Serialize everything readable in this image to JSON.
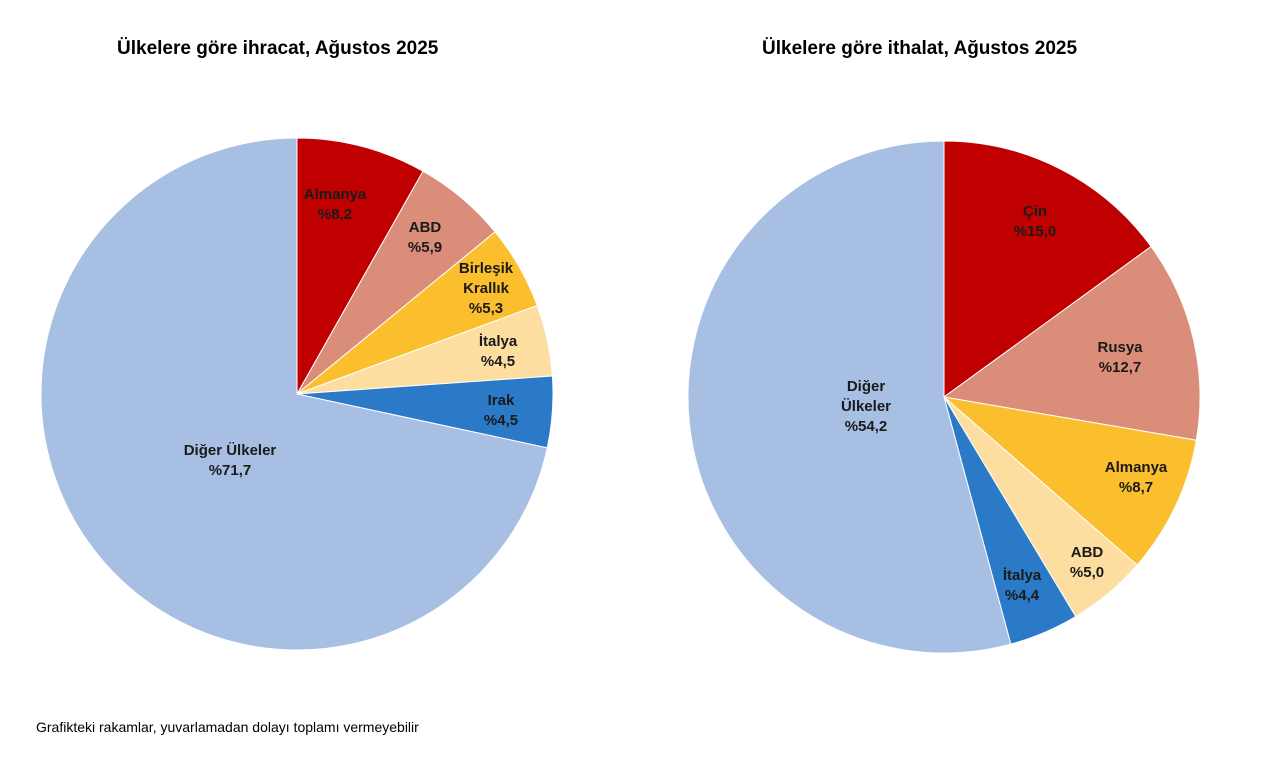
{
  "chart_data": [
    {
      "type": "pie",
      "title": "Ülkelere göre ihracat, Ağustos 2025",
      "slices": [
        {
          "label": [
            "Almanya"
          ],
          "value_label": "%8,2",
          "value": 8.2,
          "color": "#C00000"
        },
        {
          "label": [
            "ABD"
          ],
          "value_label": "%5,9",
          "value": 5.9,
          "color": "#DA8E7A"
        },
        {
          "label": [
            "Birleşik",
            "Krallık"
          ],
          "value_label": "%5,3",
          "value": 5.3,
          "color": "#FBBF2D"
        },
        {
          "label": [
            "İtalya"
          ],
          "value_label": "%4,5",
          "value": 4.5,
          "color": "#FDDEA0"
        },
        {
          "label": [
            "Irak"
          ],
          "value_label": "%4,5",
          "value": 4.5,
          "color": "#2A7AC8"
        },
        {
          "label": [
            "Diğer Ülkeler"
          ],
          "value_label": "%71,7",
          "value": 71.7,
          "color": "#A6BFE3"
        }
      ]
    },
    {
      "type": "pie",
      "title": "Ülkelere göre ithalat, Ağustos 2025",
      "slices": [
        {
          "label": [
            "Çin"
          ],
          "value_label": "%15,0",
          "value": 15.0,
          "color": "#C00000"
        },
        {
          "label": [
            "Rusya"
          ],
          "value_label": "%12,7",
          "value": 12.7,
          "color": "#DA8E7A"
        },
        {
          "label": [
            "Almanya"
          ],
          "value_label": "%8,7",
          "value": 8.7,
          "color": "#FBBF2D"
        },
        {
          "label": [
            "ABD"
          ],
          "value_label": "%5,0",
          "value": 5.0,
          "color": "#FDDEA0"
        },
        {
          "label": [
            "İtalya"
          ],
          "value_label": "%4,4",
          "value": 4.4,
          "color": "#2A7AC8"
        },
        {
          "label": [
            "Diğer",
            "Ülkeler"
          ],
          "value_label": "%54,2",
          "value": 54.2,
          "color": "#A6BFE3"
        }
      ]
    }
  ],
  "footnote": "Grafikteki rakamlar, yuvarlamadan dolayı toplamı vermeyebilir"
}
